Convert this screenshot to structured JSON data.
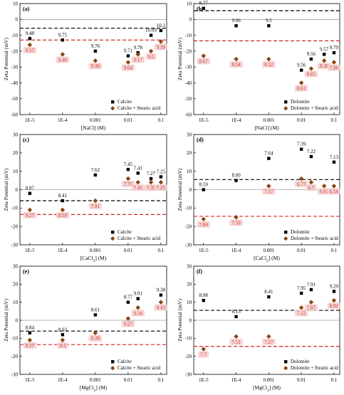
{
  "colors": {
    "series_a_marker": "#000000",
    "series_b_marker": "#8b4513",
    "series_b_label": "#c0392b",
    "halo": "#f6cfcf",
    "ref_line_a": "#000000",
    "ref_line_b": "#cc2a1e"
  },
  "chart_data": [
    {
      "type": "scatter",
      "panel": "(a)",
      "xlabel": "[NaCl] (M)",
      "ylabel": "Zeta Potential (mV)",
      "x_scale": "log",
      "xticks": [
        "1E-5",
        "1E-4",
        "0.001",
        "0.01",
        "0.1"
      ],
      "ylim": [
        -60,
        10
      ],
      "yticks": [
        -60,
        -50,
        -40,
        -30,
        -20,
        -10,
        0,
        10
      ],
      "ref_lines": [
        -5.5,
        -13
      ],
      "series": [
        {
          "name": "Calcite",
          "marker": "square",
          "x": [
            1e-05,
            0.0001,
            0.001,
            0.01,
            0.02,
            0.05,
            0.1
          ],
          "y": [
            -12,
            -13,
            -20,
            -23,
            -21,
            -10,
            -7
          ],
          "labels": [
            "9.48",
            "9.75",
            "9.76",
            "9.71",
            "9.78",
            "10.09",
            "10.1"
          ]
        },
        {
          "name": "Calcite + Stearic acid",
          "marker": "diamond",
          "x": [
            1e-05,
            0.0001,
            0.001,
            0.01,
            0.02,
            0.05,
            0.1
          ],
          "y": [
            -16,
            -22,
            -26,
            -27,
            -22,
            -20,
            -14
          ],
          "labels": [
            "9.57",
            "9.48",
            "9.38",
            "9.64",
            "9.17",
            "9.5",
            "9.39"
          ]
        }
      ]
    },
    {
      "type": "scatter",
      "panel": "(b)",
      "xlabel": "[NaCl] (M)",
      "ylabel": "Zeta Potential (mV)",
      "x_scale": "log",
      "xticks": [
        "1E-5",
        "1E-4",
        "0.001",
        "0.01",
        "0.1"
      ],
      "ylim": [
        -60,
        10
      ],
      "yticks": [
        -60,
        -50,
        -40,
        -30,
        -20,
        -10,
        0,
        10
      ],
      "ref_lines": [
        5.5,
        -13.5
      ],
      "series": [
        {
          "name": "Dolomite",
          "marker": "square",
          "x": [
            1e-05,
            0.0001,
            0.001,
            0.01,
            0.02,
            0.05,
            0.1
          ],
          "y": [
            7,
            -4,
            -4,
            -32,
            -25,
            -22,
            -21
          ],
          "labels": [
            "8.77",
            "9.06",
            "9.5",
            "9.56",
            "9.56",
            "9.57",
            "9.79"
          ]
        },
        {
          "name": "Dolomite + Stearic acid",
          "marker": "diamond",
          "x": [
            1e-05,
            0.0001,
            0.001,
            0.01,
            0.02,
            0.05,
            0.1
          ],
          "y": [
            -23,
            -25,
            -25,
            -40,
            -31,
            -26,
            -27
          ],
          "labels": [
            "8.67",
            "8.54",
            "8.52",
            "8.61",
            "8.65",
            "8.38",
            "7.96"
          ]
        }
      ]
    },
    {
      "type": "scatter",
      "panel": "(c)",
      "xlabel": "[CaCl2] (M)",
      "ylabel": "Zeta Potential (mV)",
      "x_scale": "log",
      "xticks": [
        "1E-5",
        "1E-4",
        "0.001",
        "0.01",
        "0.1"
      ],
      "ylim": [
        -30,
        30
      ],
      "yticks": [
        -30,
        -20,
        -10,
        0,
        10,
        20,
        30
      ],
      "ref_lines": [
        -6,
        -13.5
      ],
      "series": [
        {
          "name": "Calcite",
          "marker": "square",
          "x": [
            1e-05,
            0.0001,
            0.001,
            0.01,
            0.02,
            0.05,
            0.1
          ],
          "y": [
            -2,
            -6,
            8,
            11,
            9,
            6,
            7
          ],
          "labels": [
            "8.87",
            "8.41",
            "7.62",
            "7.45",
            "7.41",
            "7.27",
            "7.25"
          ]
        },
        {
          "name": "Calcite + Stearic acid",
          "marker": "diamond",
          "x": [
            1e-05,
            0.0001,
            0.001,
            0.01,
            0.02,
            0.05,
            0.1
          ],
          "y": [
            -11,
            -11,
            -6,
            6,
            4,
            4,
            4
          ],
          "labels": [
            "9.27",
            "8.59",
            "7.91",
            "7.75",
            "7.45",
            "7.39",
            "7.25"
          ]
        }
      ]
    },
    {
      "type": "scatter",
      "panel": "(d)",
      "xlabel": "[CaCl2] (M)",
      "ylabel": "Zeta Potential (mV)",
      "x_scale": "log",
      "xticks": [
        "1E-5",
        "1E-4",
        "0.001",
        "0.01",
        "0.1"
      ],
      "ylim": [
        -30,
        30
      ],
      "yticks": [
        -30,
        -20,
        -10,
        0,
        10,
        20,
        30
      ],
      "ref_lines": [
        5.5,
        -14.5
      ],
      "series": [
        {
          "name": "Dolomite",
          "marker": "square",
          "x": [
            1e-05,
            0.0001,
            0.001,
            0.01,
            0.02,
            0.1
          ],
          "y": [
            0,
            5,
            17,
            22,
            18,
            15
          ],
          "labels": [
            "8.59",
            "8.09",
            "7.64",
            "7.39",
            "7.22",
            "7.13"
          ]
        },
        {
          "name": "Dolomite + Stearic acid",
          "marker": "diamond",
          "x": [
            1e-05,
            0.0001,
            0.001,
            0.01,
            0.02,
            0.05,
            0.1
          ],
          "y": [
            -16,
            -15,
            2,
            6,
            4,
            2,
            2
          ],
          "labels": [
            "7.84",
            "7.59",
            "7.17",
            "6.77",
            "6.7",
            "6.63",
            "6.56"
          ]
        }
      ]
    },
    {
      "type": "scatter",
      "panel": "(e)",
      "xlabel": "[MgCl2] (M)",
      "ylabel": "Zeta Potential (mV)",
      "x_scale": "log",
      "xticks": [
        "1E-5",
        "1E-4",
        "0.001",
        "0.01",
        "0.1"
      ],
      "ylim": [
        -30,
        30
      ],
      "yticks": [
        -30,
        -20,
        -10,
        0,
        10,
        20,
        30
      ],
      "ref_lines": [
        -6,
        -13.5
      ],
      "series": [
        {
          "name": "Calcite",
          "marker": "square",
          "x": [
            1e-05,
            0.0001,
            0.001,
            0.01,
            0.02,
            0.1
          ],
          "y": [
            -7,
            -8,
            3,
            10,
            12,
            14
          ],
          "labels": [
            "8.84",
            "8.93",
            "8.61",
            "8.77",
            "9.01",
            "9.38"
          ]
        },
        {
          "name": "Calcite + Stearic acid",
          "marker": "diamond",
          "x": [
            1e-05,
            0.0001,
            0.001,
            0.01,
            0.02,
            0.1
          ],
          "y": [
            -11,
            -11,
            -7,
            1,
            7,
            10
          ],
          "labels": [
            "9.27",
            "9.3",
            "9.38",
            "9.27",
            "9.34",
            "9.43"
          ]
        }
      ]
    },
    {
      "type": "scatter",
      "panel": "(f)",
      "xlabel": "[MgCl2] (M)",
      "ylabel": "Zeta Potential (mV)",
      "x_scale": "log",
      "xticks": [
        "1E-5",
        "1E-4",
        "0.001",
        "0.01",
        "0.1"
      ],
      "ylim": [
        -30,
        30
      ],
      "yticks": [
        -30,
        -20,
        -10,
        0,
        10,
        20,
        30
      ],
      "ref_lines": [
        5.5,
        -14.5
      ],
      "series": [
        {
          "name": "Dolomite",
          "marker": "square",
          "x": [
            1e-05,
            0.0001,
            0.001,
            0.01,
            0.02,
            0.1
          ],
          "y": [
            11,
            2,
            13,
            15,
            17,
            16
          ],
          "labels": [
            "8.08",
            "8.15",
            "8.41",
            "7.95",
            "7.91",
            "9.29"
          ]
        },
        {
          "name": "Dolomite + Stearic acid",
          "marker": "diamond",
          "x": [
            1e-05,
            0.0001,
            0.001,
            0.01,
            0.02,
            0.1
          ],
          "y": [
            -16,
            -9,
            -9,
            7,
            10,
            11
          ],
          "labels": [
            "7.7",
            "7.51",
            "7.27",
            "7.12",
            "7.87",
            "8.92"
          ]
        }
      ]
    }
  ]
}
